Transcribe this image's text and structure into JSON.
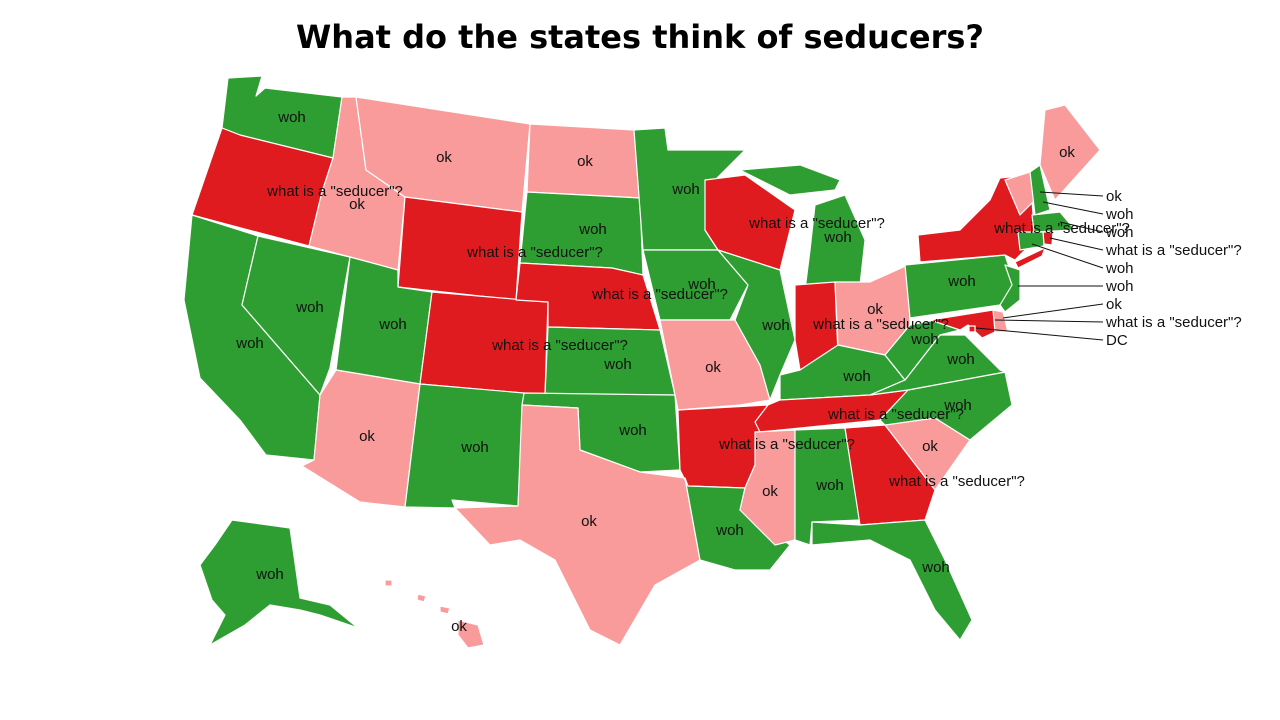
{
  "title": "What do the states think of seducers?",
  "legend_colors": {
    "woh": "#2f9e32",
    "ok": "#f99b9b",
    "what is a \"seducer\"?": "#e01b1f"
  },
  "states": [
    {
      "id": "WA",
      "value": "woh"
    },
    {
      "id": "OR",
      "value": "what is a \"seducer\"?"
    },
    {
      "id": "CA",
      "value": "woh"
    },
    {
      "id": "NV",
      "value": "woh"
    },
    {
      "id": "ID",
      "value": "ok"
    },
    {
      "id": "MT",
      "value": "ok"
    },
    {
      "id": "WY",
      "value": "what is a \"seducer\"?"
    },
    {
      "id": "UT",
      "value": "woh"
    },
    {
      "id": "AZ",
      "value": "ok"
    },
    {
      "id": "CO",
      "value": "what is a \"seducer\"?"
    },
    {
      "id": "NM",
      "value": "woh"
    },
    {
      "id": "ND",
      "value": "ok"
    },
    {
      "id": "SD",
      "value": "woh"
    },
    {
      "id": "NE",
      "value": "what is a \"seducer\"?"
    },
    {
      "id": "KS",
      "value": "woh"
    },
    {
      "id": "OK",
      "value": "woh"
    },
    {
      "id": "TX",
      "value": "ok"
    },
    {
      "id": "MN",
      "value": "woh"
    },
    {
      "id": "IA",
      "value": "woh"
    },
    {
      "id": "MO",
      "value": "ok"
    },
    {
      "id": "AR",
      "value": "what is a \"seducer\"?"
    },
    {
      "id": "LA",
      "value": "woh"
    },
    {
      "id": "WI",
      "value": "what is a \"seducer\"?"
    },
    {
      "id": "IL",
      "value": "woh"
    },
    {
      "id": "MI",
      "value": "woh"
    },
    {
      "id": "IN",
      "value": "what is a \"seducer\"?"
    },
    {
      "id": "OH",
      "value": "ok"
    },
    {
      "id": "KY",
      "value": "woh"
    },
    {
      "id": "TN",
      "value": "what is a \"seducer\"?"
    },
    {
      "id": "MS",
      "value": "ok"
    },
    {
      "id": "AL",
      "value": "woh"
    },
    {
      "id": "GA",
      "value": "what is a \"seducer\"?"
    },
    {
      "id": "FL",
      "value": "woh"
    },
    {
      "id": "SC",
      "value": "ok"
    },
    {
      "id": "NC",
      "value": "woh"
    },
    {
      "id": "VA",
      "value": "woh"
    },
    {
      "id": "WV",
      "value": "woh"
    },
    {
      "id": "PA",
      "value": "woh"
    },
    {
      "id": "NY",
      "value": "what is a \"seducer\"?"
    },
    {
      "id": "VT",
      "value": "ok"
    },
    {
      "id": "NH",
      "value": "woh"
    },
    {
      "id": "ME",
      "value": "ok"
    },
    {
      "id": "MA",
      "value": "woh"
    },
    {
      "id": "RI",
      "value": "what is a \"seducer\"?"
    },
    {
      "id": "CT",
      "value": "woh"
    },
    {
      "id": "NJ",
      "value": "woh"
    },
    {
      "id": "DE",
      "value": "ok"
    },
    {
      "id": "MD",
      "value": "what is a \"seducer\"?"
    },
    {
      "id": "DC",
      "value": "what is a \"seducer\"?"
    },
    {
      "id": "AK",
      "value": "woh"
    },
    {
      "id": "HI",
      "value": "ok"
    }
  ],
  "callouts": [
    "ok",
    "woh",
    "woh",
    "what is a \"seducer\"?",
    "woh",
    "woh",
    "ok",
    "what is a \"seducer\"?",
    "DC"
  ]
}
